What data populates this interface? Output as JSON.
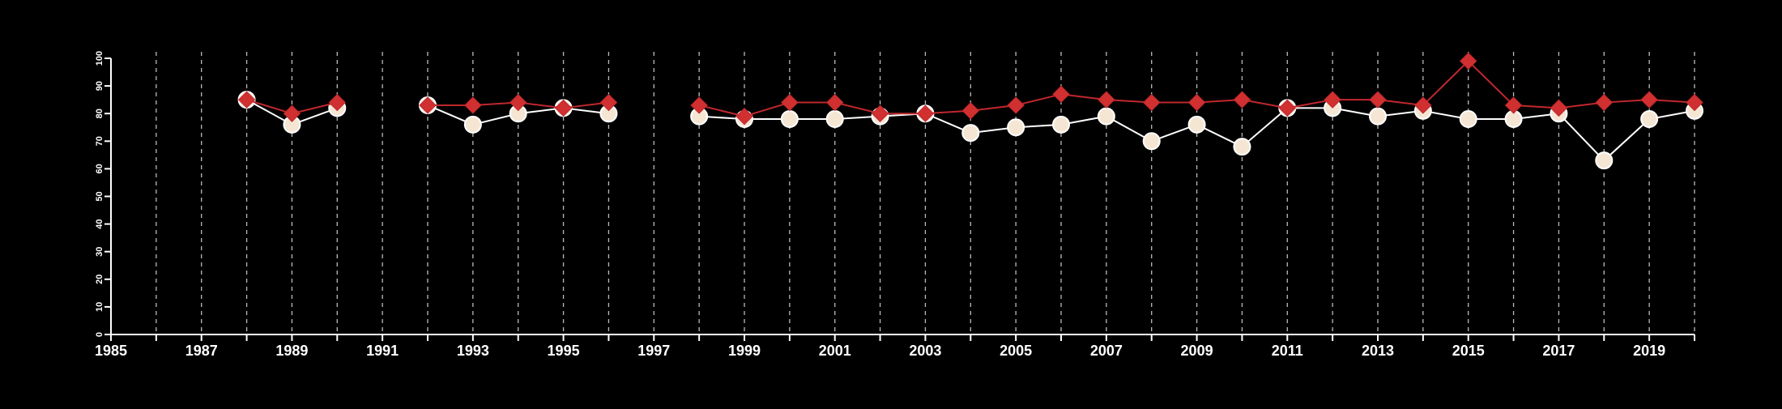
{
  "chart_data": {
    "type": "line",
    "background_color": "#000000",
    "axis_color": "#ffffff",
    "grid": "vertical dashed lines at every year",
    "xlim": [
      1985,
      2020
    ],
    "ylim": [
      0,
      100
    ],
    "x_ticks": [
      1985,
      1987,
      1989,
      1991,
      1993,
      1995,
      1997,
      1999,
      2001,
      2003,
      2005,
      2007,
      2009,
      2011,
      2013,
      2015,
      2017,
      2019
    ],
    "y_ticks": [
      0,
      10,
      20,
      30,
      40,
      50,
      60,
      70,
      80,
      90,
      100
    ],
    "series": [
      {
        "line_color": "#ffffff",
        "marker": "circle",
        "marker_fill": "#f5e6d3",
        "points": [
          [
            1988,
            85
          ],
          [
            1989,
            76
          ],
          [
            1990,
            82
          ],
          [
            null,
            null
          ],
          [
            1992,
            83
          ],
          [
            1993,
            76
          ],
          [
            1994,
            80
          ],
          [
            1995,
            82
          ],
          [
            1996,
            80
          ],
          [
            null,
            null
          ],
          [
            1998,
            79
          ],
          [
            1999,
            78
          ],
          [
            2000,
            78
          ],
          [
            2001,
            78
          ],
          [
            2002,
            79
          ],
          [
            2003,
            80
          ],
          [
            2004,
            73
          ],
          [
            2005,
            75
          ],
          [
            2006,
            76
          ],
          [
            2007,
            79
          ],
          [
            2008,
            70
          ],
          [
            2009,
            76
          ],
          [
            2010,
            68
          ],
          [
            2011,
            82
          ],
          [
            2012,
            82
          ],
          [
            2013,
            79
          ],
          [
            2014,
            81
          ],
          [
            2015,
            78
          ],
          [
            2016,
            78
          ],
          [
            2017,
            80
          ],
          [
            2018,
            63
          ],
          [
            2019,
            78
          ],
          [
            2020,
            81
          ]
        ]
      },
      {
        "line_color": "#c0282d",
        "marker": "diamond",
        "marker_fill": "#d03030",
        "points": [
          [
            1988,
            85
          ],
          [
            1989,
            80
          ],
          [
            1990,
            84
          ],
          [
            null,
            null
          ],
          [
            1992,
            83
          ],
          [
            1993,
            83
          ],
          [
            1994,
            84
          ],
          [
            1995,
            82
          ],
          [
            1996,
            84
          ],
          [
            null,
            null
          ],
          [
            1998,
            83
          ],
          [
            1999,
            79
          ],
          [
            2000,
            84
          ],
          [
            2001,
            84
          ],
          [
            2002,
            80
          ],
          [
            2003,
            80
          ],
          [
            2004,
            81
          ],
          [
            2005,
            83
          ],
          [
            2006,
            87
          ],
          [
            2007,
            85
          ],
          [
            2008,
            84
          ],
          [
            2009,
            84
          ],
          [
            2010,
            85
          ],
          [
            2011,
            82
          ],
          [
            2012,
            85
          ],
          [
            2013,
            85
          ],
          [
            2014,
            83
          ],
          [
            2015,
            99
          ],
          [
            2016,
            83
          ],
          [
            2017,
            82
          ],
          [
            2018,
            84
          ],
          [
            2019,
            85
          ],
          [
            2020,
            84
          ]
        ]
      }
    ]
  }
}
